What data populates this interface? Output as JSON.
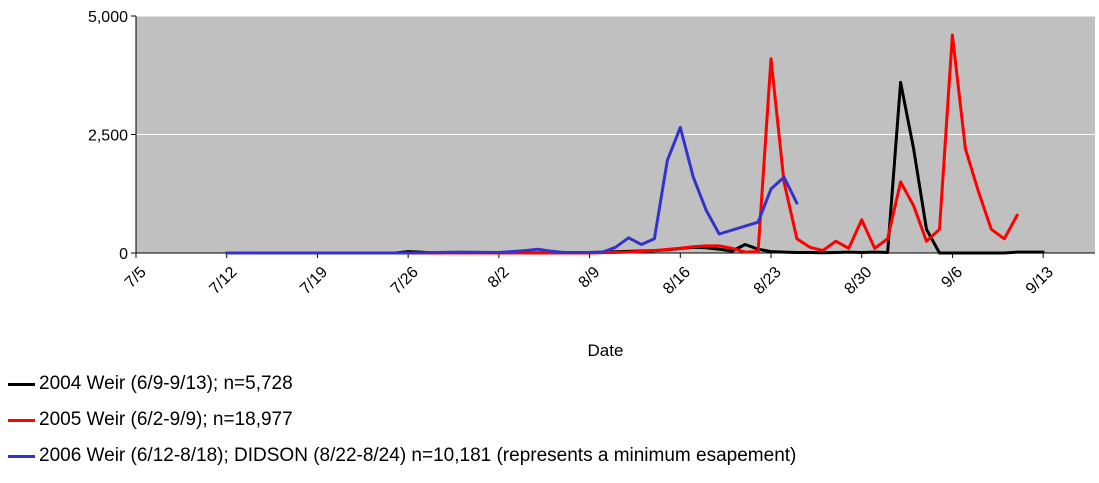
{
  "chart_data": {
    "type": "line",
    "xlabel": "Date",
    "ylabel": "",
    "ylim": [
      0,
      5000
    ],
    "xlim": [
      "7/5",
      "9/17"
    ],
    "yticks": [
      0,
      2500,
      5000
    ],
    "ytick_labels": [
      "0",
      "2,500",
      "5,000"
    ],
    "xtick_labels": [
      "7/5",
      "7/12",
      "7/19",
      "7/26",
      "8/2",
      "8/9",
      "8/16",
      "8/23",
      "8/30",
      "9/6",
      "9/13"
    ],
    "grid": true,
    "plot_background": "#c0c0c0",
    "legend_position": "bottom-left",
    "series": [
      {
        "name": "2004 Weir (6/9-9/13); n=5,728",
        "color": "#000000",
        "x": [
          "7/12",
          "7/19",
          "7/25",
          "7/26",
          "7/27",
          "7/28",
          "8/2",
          "8/9",
          "8/14",
          "8/15",
          "8/17",
          "8/18",
          "8/19",
          "8/20",
          "8/21",
          "8/22",
          "8/23",
          "8/24",
          "8/25",
          "8/26",
          "8/27",
          "8/28",
          "8/29",
          "8/30",
          "8/31",
          "9/1",
          "9/2",
          "9/3",
          "9/4",
          "9/5",
          "9/6",
          "9/7",
          "9/8",
          "9/9",
          "9/10",
          "9/11",
          "9/12",
          "9/13"
        ],
        "y": [
          0,
          0,
          0,
          30,
          20,
          0,
          0,
          10,
          50,
          70,
          120,
          110,
          80,
          40,
          180,
          80,
          30,
          20,
          10,
          10,
          5,
          10,
          20,
          10,
          20,
          10,
          3600,
          2200,
          500,
          0,
          0,
          0,
          0,
          0,
          0,
          20,
          20,
          20
        ]
      },
      {
        "name": "2005 Weir (6/2-9/9);  n=18,977",
        "color": "#ff0000",
        "x": [
          "7/12",
          "7/19",
          "7/26",
          "8/2",
          "8/9",
          "8/12",
          "8/14",
          "8/16",
          "8/17",
          "8/18",
          "8/19",
          "8/20",
          "8/21",
          "8/22",
          "8/23",
          "8/24",
          "8/25",
          "8/26",
          "8/27",
          "8/28",
          "8/29",
          "8/30",
          "8/31",
          "9/1",
          "9/2",
          "9/3",
          "9/4",
          "9/5",
          "9/6",
          "9/7",
          "9/8",
          "9/9",
          "9/10",
          "9/11"
        ],
        "y": [
          0,
          0,
          0,
          0,
          0,
          20,
          50,
          100,
          130,
          150,
          150,
          100,
          20,
          30,
          4100,
          1500,
          300,
          120,
          50,
          250,
          100,
          700,
          100,
          300,
          1500,
          1000,
          250,
          500,
          4600,
          2200,
          1300,
          500,
          300,
          800
        ]
      },
      {
        "name": "2006 Weir (6/12-8/18); DIDSON (8/22-8/24)  n=10,181 (represents a minimum esapement)",
        "color": "#3333cc",
        "x": [
          "7/12",
          "7/19",
          "7/26",
          "7/30",
          "8/2",
          "8/4",
          "8/5",
          "8/6",
          "8/7",
          "8/9",
          "8/10",
          "8/11",
          "8/12",
          "8/13",
          "8/14",
          "8/15",
          "8/16",
          "8/17",
          "8/18",
          "8/19",
          "8/22",
          "8/23",
          "8/24",
          "8/25"
        ],
        "y": [
          0,
          0,
          0,
          20,
          10,
          50,
          80,
          40,
          10,
          10,
          20,
          120,
          320,
          180,
          300,
          1950,
          2650,
          1600,
          900,
          400,
          650,
          1350,
          1600,
          1050
        ]
      }
    ]
  }
}
